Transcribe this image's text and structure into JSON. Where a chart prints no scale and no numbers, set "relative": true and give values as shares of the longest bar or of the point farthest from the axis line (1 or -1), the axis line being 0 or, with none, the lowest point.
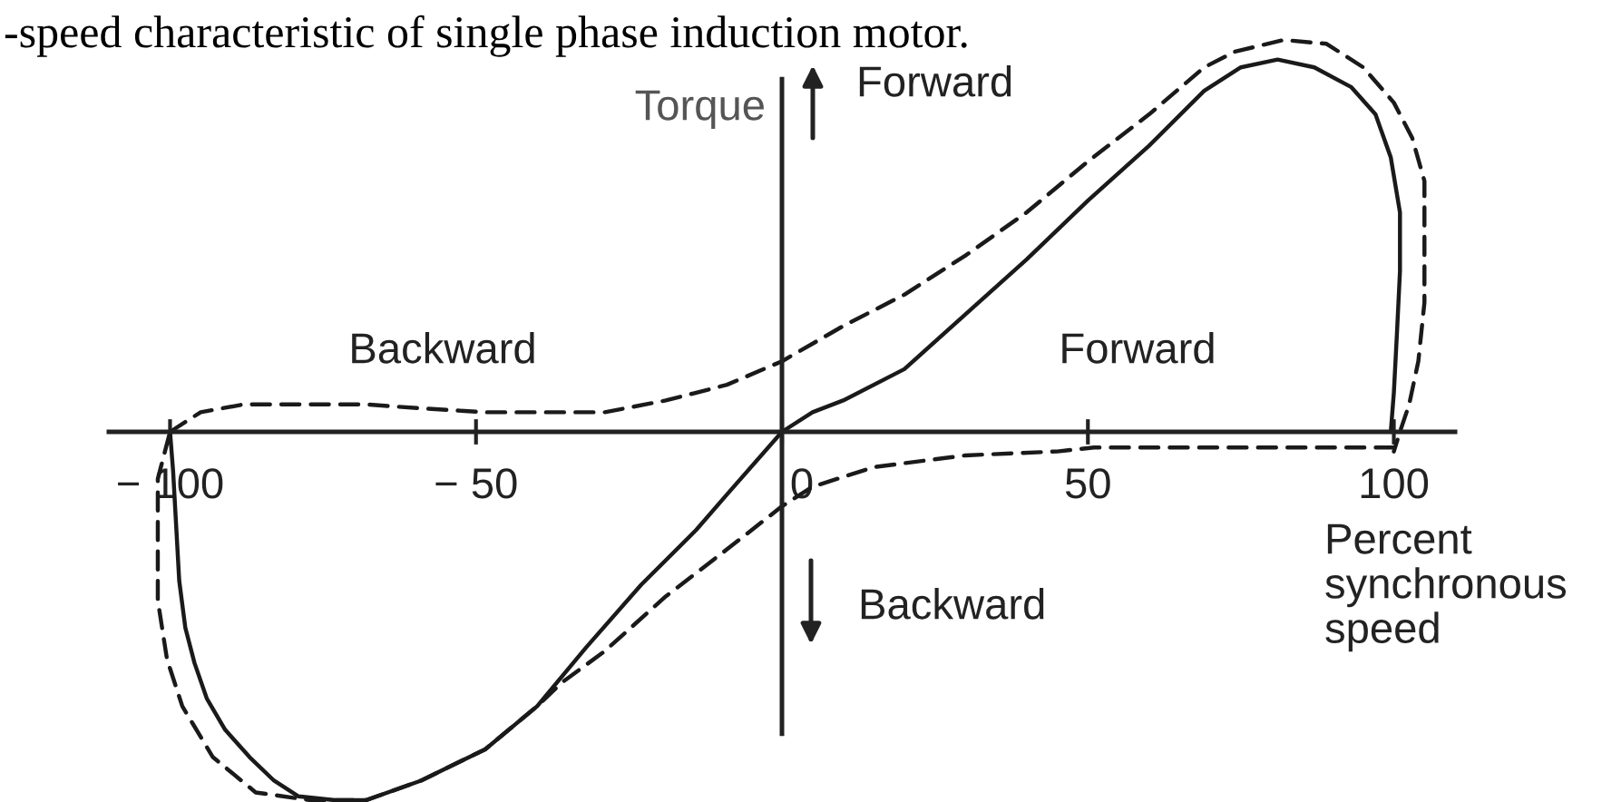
{
  "chart_data": {
    "type": "line",
    "title": "-speed characteristic of single phase induction motor.",
    "xlabel": "Percent\nsynchronous\nspeed",
    "ylabel": "Torque",
    "relative": true,
    "xlim": [
      -110,
      110
    ],
    "xticks": [
      {
        "value": -100,
        "label": "− 100"
      },
      {
        "value": -50,
        "label": "− 50"
      },
      0,
      50,
      100
    ],
    "annotations": [
      "Backward",
      "Forward",
      "Forward",
      "Backward"
    ],
    "series": [
      {
        "color": "#1a1a1a",
        "line_style": "solid",
        "x": [
          -100,
          -99.5,
          -99,
          -98.5,
          -97.5,
          -96,
          -94,
          -91,
          -87,
          -83,
          -79,
          -73,
          -68,
          -59,
          -48.5,
          -40,
          -32,
          -23,
          -14,
          -9,
          0,
          5,
          10,
          20,
          30,
          40,
          50,
          60,
          69,
          75,
          81,
          87,
          93,
          97,
          99.5,
          101,
          101,
          100.5,
          100,
          99.5
        ],
        "values": [
          0,
          -0.1,
          -0.24,
          -0.38,
          -0.5,
          -0.59,
          -0.68,
          -0.76,
          -0.83,
          -0.89,
          -0.93,
          -0.94,
          -0.94,
          -0.89,
          -0.81,
          -0.7,
          -0.55,
          -0.39,
          -0.25,
          -0.16,
          0,
          0.05,
          0.08,
          0.16,
          0.3,
          0.44,
          0.59,
          0.73,
          0.87,
          0.93,
          0.95,
          0.93,
          0.88,
          0.81,
          0.7,
          0.56,
          0.41,
          0.25,
          0.1,
          0
        ]
      },
      {
        "color": "#1a1a1a",
        "line_style": "dashed",
        "x": [
          -100,
          -95,
          -88,
          -78,
          -68,
          -59,
          -48.5,
          -39,
          -29,
          -19,
          -9,
          0,
          10,
          20,
          30,
          40,
          50,
          60,
          69,
          74,
          82,
          89,
          95,
          100,
          103,
          105,
          105,
          105,
          104,
          102.5,
          101,
          100
        ],
        "values": [
          0,
          0.05,
          0.07,
          0.07,
          0.07,
          0.06,
          0.05,
          0.05,
          0.05,
          0.08,
          0.12,
          0.18,
          0.27,
          0.35,
          0.45,
          0.56,
          0.69,
          0.81,
          0.93,
          0.97,
          1,
          0.99,
          0.93,
          0.84,
          0.75,
          0.64,
          0.49,
          0.33,
          0.18,
          0.07,
          0,
          -0.05
        ]
      },
      {
        "color": "#1a1a1a",
        "line_style": "dashed",
        "x": [
          100,
          80,
          51,
          45,
          30,
          15,
          5,
          0,
          -9,
          -19,
          -29,
          -36,
          -40,
          -48.5,
          -59,
          -68,
          -77,
          -86,
          -93,
          -98,
          -100.5,
          -102,
          -102,
          -102,
          -100
        ],
        "values": [
          -0.04,
          -0.04,
          -0.04,
          -0.05,
          -0.06,
          -0.09,
          -0.14,
          -0.19,
          -0.3,
          -0.42,
          -0.56,
          -0.64,
          -0.7,
          -0.81,
          -0.89,
          -0.94,
          -0.94,
          -0.92,
          -0.83,
          -0.7,
          -0.58,
          -0.43,
          -0.29,
          -0.12,
          0
        ]
      }
    ]
  }
}
